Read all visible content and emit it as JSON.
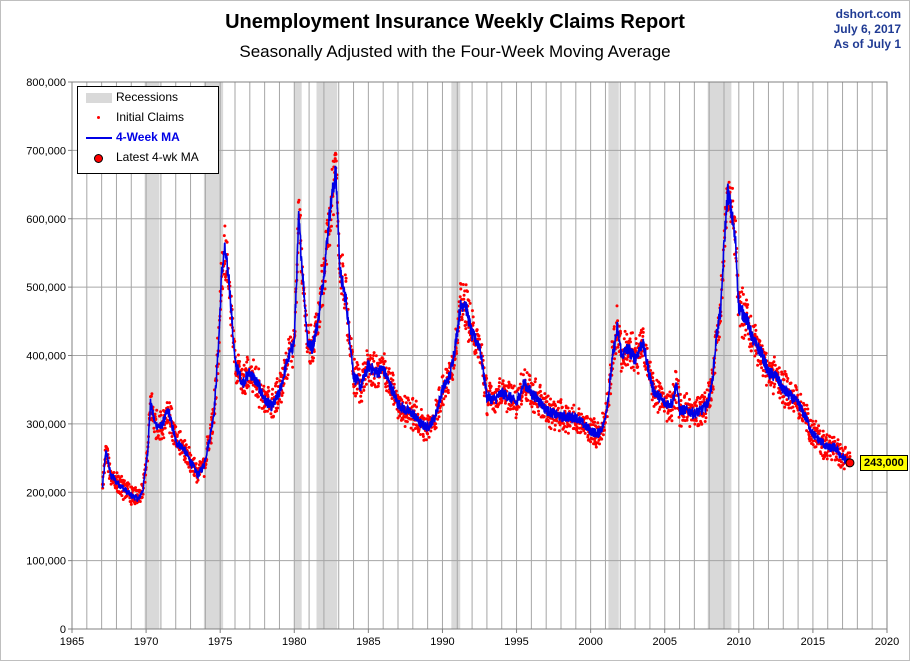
{
  "header": {
    "title": "Unemployment Insurance Weekly Claims Report",
    "subtitle": "Seasonally Adjusted with the Four-Week Moving Average",
    "source": "dshort.com",
    "date": "July 6, 2017",
    "as_of": "As of July 1"
  },
  "legend": {
    "recessions": "Recessions",
    "initial_claims": "Initial Claims",
    "ma": "4-Week MA",
    "latest": "Latest 4-wk MA"
  },
  "callout": {
    "value_label": "243,000"
  },
  "colors": {
    "dots": "#ff0000",
    "ma_line": "#0000e6",
    "recession": "#d9d9d9",
    "grid": "#a6a6a6",
    "callout_bg": "#ffff00",
    "source_text": "#1f3a93"
  },
  "chart_data": {
    "type": "line",
    "title": "Unemployment Insurance Weekly Claims Report",
    "subtitle": "Seasonally Adjusted with the Four-Week Moving Average",
    "xlim": [
      1965,
      2020
    ],
    "ylim": [
      0,
      800000
    ],
    "x_ticks": [
      "1965",
      "1970",
      "1975",
      "1980",
      "1985",
      "1990",
      "1995",
      "2000",
      "2005",
      "2010",
      "2015",
      "2020"
    ],
    "y_ticks": [
      "0",
      "100,000",
      "200,000",
      "300,000",
      "400,000",
      "500,000",
      "600,000",
      "700,000",
      "800,000"
    ],
    "grid": "vertical every year, horizontal every 100,000",
    "legend_position": "top-left",
    "recessions": [
      [
        1969.9,
        1970.9
      ],
      [
        1973.9,
        1975.2
      ],
      [
        1980.0,
        1980.5
      ],
      [
        1981.5,
        1982.9
      ],
      [
        1990.6,
        1991.2
      ],
      [
        2001.2,
        2001.9
      ],
      [
        2007.9,
        2009.5
      ]
    ],
    "series": [
      {
        "name": "4-Week MA",
        "style": "line",
        "x": [
          1967.05,
          1967.3,
          1967.6,
          1968.0,
          1968.5,
          1969.0,
          1969.5,
          1969.8,
          1970.1,
          1970.3,
          1970.6,
          1971.0,
          1971.5,
          1972.0,
          1972.5,
          1973.0,
          1973.5,
          1973.9,
          1974.3,
          1974.6,
          1974.9,
          1975.1,
          1975.3,
          1975.6,
          1976.0,
          1976.5,
          1977.0,
          1977.5,
          1978.0,
          1978.5,
          1979.0,
          1979.5,
          1980.0,
          1980.3,
          1980.5,
          1980.9,
          1981.2,
          1981.6,
          1982.0,
          1982.4,
          1982.8,
          1983.1,
          1983.5,
          1984.0,
          1984.5,
          1985.0,
          1985.5,
          1986.0,
          1986.5,
          1987.0,
          1987.5,
          1988.0,
          1988.5,
          1989.0,
          1989.5,
          1990.0,
          1990.5,
          1990.9,
          1991.2,
          1991.5,
          1992.0,
          1992.5,
          1993.0,
          1993.5,
          1994.0,
          1994.5,
          1995.0,
          1995.5,
          1996.0,
          1996.5,
          1997.0,
          1997.5,
          1998.0,
          1998.5,
          1999.0,
          1999.5,
          2000.0,
          2000.5,
          2000.9,
          2001.2,
          2001.5,
          2001.8,
          2002.1,
          2002.5,
          2003.0,
          2003.5,
          2003.8,
          2004.2,
          2004.6,
          2005.0,
          2005.5,
          2005.8,
          2006.0,
          2006.5,
          2007.0,
          2007.5,
          2007.9,
          2008.2,
          2008.5,
          2008.8,
          2009.0,
          2009.25,
          2009.5,
          2009.8,
          2010.0,
          2010.5,
          2011.0,
          2011.5,
          2012.0,
          2012.5,
          2013.0,
          2013.5,
          2014.0,
          2014.5,
          2015.0,
          2015.5,
          2016.0,
          2016.5,
          2017.0,
          2017.5
        ],
        "values": [
          205000,
          262000,
          225000,
          215000,
          205000,
          195000,
          190000,
          205000,
          260000,
          330000,
          300000,
          295000,
          320000,
          275000,
          265000,
          245000,
          225000,
          240000,
          280000,
          320000,
          420000,
          520000,
          555000,
          510000,
          390000,
          360000,
          375000,
          360000,
          335000,
          325000,
          345000,
          390000,
          420000,
          600000,
          540000,
          420000,
          410000,
          450000,
          520000,
          610000,
          670000,
          520000,
          480000,
          370000,
          355000,
          385000,
          375000,
          380000,
          355000,
          330000,
          320000,
          315000,
          300000,
          295000,
          310000,
          350000,
          370000,
          420000,
          470000,
          480000,
          430000,
          415000,
          340000,
          335000,
          345000,
          340000,
          330000,
          360000,
          345000,
          335000,
          320000,
          315000,
          310000,
          310000,
          310000,
          300000,
          290000,
          285000,
          300000,
          340000,
          400000,
          440000,
          400000,
          410000,
          395000,
          420000,
          390000,
          350000,
          340000,
          330000,
          330000,
          360000,
          320000,
          320000,
          315000,
          320000,
          330000,
          360000,
          430000,
          470000,
          560000,
          640000,
          610000,
          560000,
          470000,
          455000,
          420000,
          405000,
          375000,
          370000,
          350000,
          340000,
          330000,
          310000,
          285000,
          275000,
          265000,
          265000,
          250000,
          243000
        ]
      },
      {
        "name": "Initial Claims",
        "style": "dots",
        "note": "weekly values scattered around the 4-week moving average"
      },
      {
        "name": "Latest 4-wk MA",
        "style": "marker",
        "x": [
          2017.5
        ],
        "values": [
          243000
        ]
      }
    ]
  }
}
